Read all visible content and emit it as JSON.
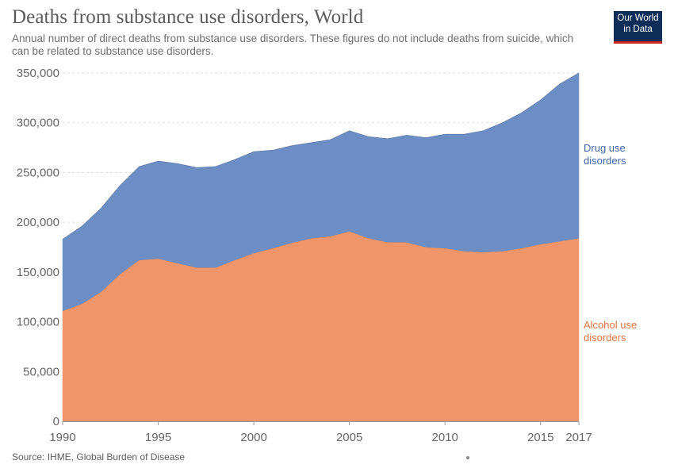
{
  "title": "Deaths from substance use disorders, World",
  "subtitle": "Annual number of direct deaths from substance use disorders. These figures do not include deaths from suicide, which can be related to substance use disorders.",
  "logo": {
    "line1": "Our World",
    "line2": "in Data"
  },
  "source": "Source: IHME, Global Burden of Disease",
  "chart_data": {
    "type": "area",
    "stacked": true,
    "x": [
      1990,
      1991,
      1992,
      1993,
      1994,
      1995,
      1996,
      1997,
      1998,
      1999,
      2000,
      2001,
      2002,
      2003,
      2004,
      2005,
      2006,
      2007,
      2008,
      2009,
      2010,
      2011,
      2012,
      2013,
      2014,
      2015,
      2016,
      2017
    ],
    "series": [
      {
        "name": "Alcohol use disorders",
        "label_lines": [
          "Alcohol use",
          "disorders"
        ],
        "color": "#f0956a",
        "values": [
          111000,
          118000,
          130000,
          148000,
          162000,
          163500,
          159000,
          154500,
          154500,
          162000,
          169000,
          174000,
          179500,
          184000,
          186000,
          191000,
          184000,
          180000,
          180000,
          175000,
          174000,
          171000,
          170000,
          171000,
          174000,
          178000,
          181000,
          184000
        ]
      },
      {
        "name": "Drug use disorders",
        "label_lines": [
          "Drug use",
          "disorders"
        ],
        "color": "#6d8ec4",
        "values": [
          72000,
          78000,
          84000,
          89000,
          94000,
          98000,
          100000,
          100500,
          101500,
          101000,
          102000,
          98500,
          97500,
          96000,
          97000,
          101000,
          102000,
          104000,
          107500,
          110000,
          114500,
          117500,
          122000,
          129000,
          136000,
          145000,
          158000,
          166000
        ]
      }
    ],
    "y_ticks": [
      0,
      50000,
      100000,
      150000,
      200000,
      250000,
      300000,
      350000
    ],
    "y_tick_labels": [
      "0",
      "50,000",
      "100,000",
      "150,000",
      "200,000",
      "250,000",
      "300,000",
      "350,000"
    ],
    "x_ticks": [
      1990,
      1995,
      2000,
      2005,
      2010,
      2015,
      2017
    ],
    "ylim": [
      0,
      350000
    ],
    "xlim": [
      1990,
      2017
    ],
    "grid": true,
    "label_text_colors": {
      "Drug use disorders": "#3f66a8",
      "Alcohol use disorders": "#e0743f"
    }
  }
}
